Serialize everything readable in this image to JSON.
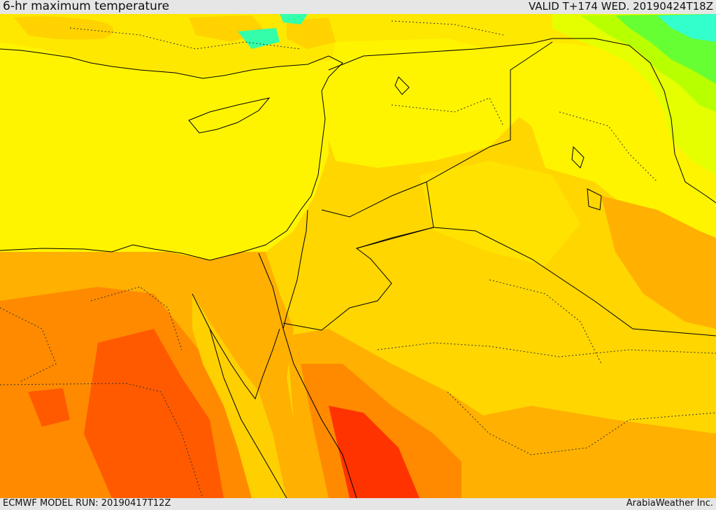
{
  "header": {
    "title": "6-hr maximum temperature",
    "valid_time": "VALID T+174 WED. 20190424T18Z"
  },
  "footer": {
    "model_run": "ECMWF MODEL RUN: 20190417T12Z",
    "credit": "ArabiaWeather Inc."
  },
  "map": {
    "parameter": "6-hr maximum temperature",
    "colors": {
      "sea_and_levant_yellow": "#fff400",
      "light_orange": "#ffd600",
      "orange": "#ffb000",
      "deep_orange": "#ff8a00",
      "red_orange": "#ff5a00",
      "red": "#ff3300",
      "yellow_green": "#e5ff00",
      "green": "#66ff33",
      "cyan": "#33ffcc"
    }
  }
}
